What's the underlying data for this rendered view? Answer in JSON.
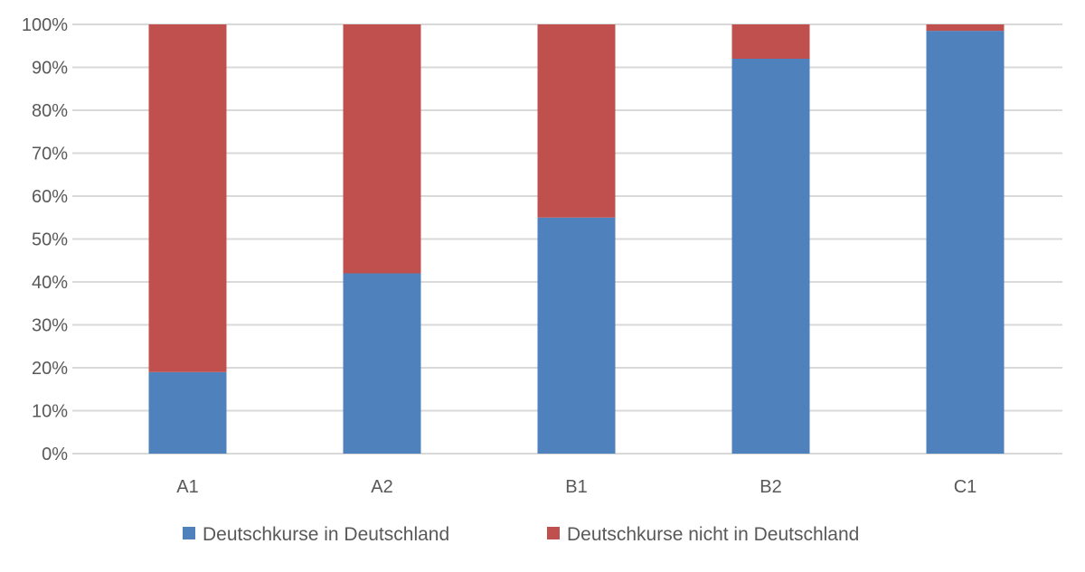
{
  "chart_data": {
    "type": "bar",
    "stacked": true,
    "categories": [
      "A1",
      "A2",
      "B1",
      "B2",
      "C1"
    ],
    "series": [
      {
        "name": "Deutschkurse in Deutschland",
        "color": "#4F81BD",
        "values": [
          19,
          42,
          55,
          92,
          98.5
        ]
      },
      {
        "name": "Deutschkurse nicht in Deutschland",
        "color": "#C0504D",
        "values": [
          81,
          58,
          45,
          8,
          1.5
        ]
      }
    ],
    "yticks": [
      "0%",
      "10%",
      "20%",
      "30%",
      "40%",
      "50%",
      "60%",
      "70%",
      "80%",
      "90%",
      "100%"
    ],
    "ylim": [
      0,
      100
    ],
    "grid": true,
    "legend": "bottom",
    "title": "",
    "xlabel": "",
    "ylabel": ""
  }
}
